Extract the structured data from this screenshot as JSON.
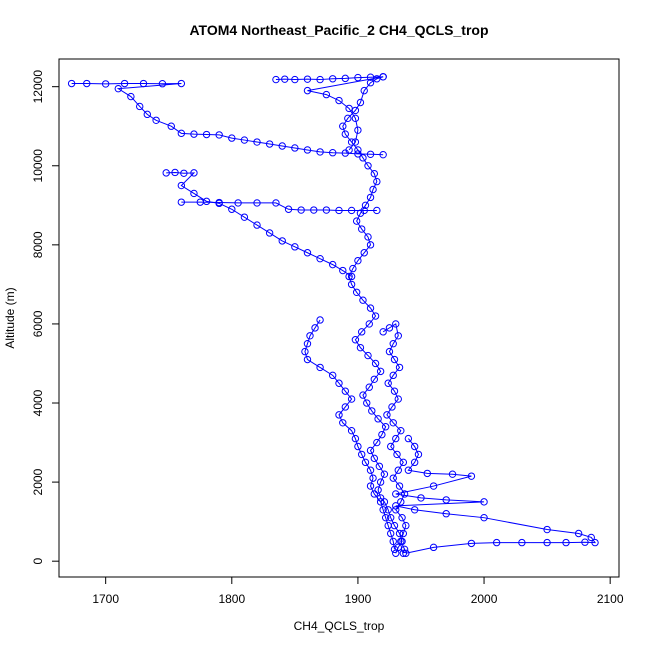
{
  "chart_data": {
    "type": "scatter",
    "title": "ATOM4 Northeast_Pacific_2 CH4_QCLS_trop",
    "xlabel": "CH4_QCLS_trop",
    "ylabel": "Altitude (m)",
    "xlim": [
      1663,
      2107
    ],
    "ylim": [
      -400,
      12700
    ],
    "xticks": [
      1700,
      1800,
      1900,
      2000,
      2100
    ],
    "yticks": [
      0,
      2000,
      4000,
      6000,
      8000,
      10000,
      12000
    ],
    "color": "#0000ff",
    "marker": "open-circle",
    "connected": true,
    "series": [
      {
        "points": [
          [
            1930,
            200
          ],
          [
            1932,
            350
          ],
          [
            1935,
            500
          ],
          [
            1933,
            700
          ],
          [
            1929,
            900
          ],
          [
            1926,
            1100
          ],
          [
            1924,
            1300
          ],
          [
            1921,
            1500
          ],
          [
            1918,
            1600
          ],
          [
            1916,
            1800
          ],
          [
            1918,
            2000
          ],
          [
            1921,
            2200
          ],
          [
            1917,
            2400
          ],
          [
            1913,
            2600
          ],
          [
            1910,
            2800
          ],
          [
            1915,
            3000
          ],
          [
            1919,
            3200
          ],
          [
            1922,
            3400
          ],
          [
            1916,
            3600
          ],
          [
            1911,
            3800
          ],
          [
            1907,
            4000
          ],
          [
            1904,
            4200
          ],
          [
            1909,
            4400
          ],
          [
            1913,
            4600
          ],
          [
            1918,
            4800
          ],
          [
            1914,
            5000
          ],
          [
            1908,
            5200
          ],
          [
            1902,
            5400
          ],
          [
            1898,
            5600
          ],
          [
            1903,
            5800
          ],
          [
            1909,
            6000
          ],
          [
            1914,
            6200
          ],
          [
            1910,
            6400
          ],
          [
            1904,
            6600
          ],
          [
            1899,
            6800
          ],
          [
            1895,
            7000
          ],
          [
            1893,
            7200
          ],
          [
            1896,
            7400
          ],
          [
            1900,
            7600
          ],
          [
            1905,
            7800
          ],
          [
            1910,
            8000
          ],
          [
            1908,
            8200
          ],
          [
            1903,
            8400
          ],
          [
            1899,
            8600
          ],
          [
            1902,
            8800
          ],
          [
            1906,
            9000
          ],
          [
            1910,
            9200
          ],
          [
            1912,
            9400
          ],
          [
            1915,
            9600
          ],
          [
            1913,
            9800
          ],
          [
            1908,
            10000
          ],
          [
            1904,
            10200
          ],
          [
            1900,
            10400
          ],
          [
            1895,
            10600
          ],
          [
            1890,
            10800
          ],
          [
            1888,
            11000
          ],
          [
            1892,
            11200
          ],
          [
            1898,
            11400
          ],
          [
            1902,
            11600
          ],
          [
            1905,
            11900
          ],
          [
            1910,
            12100
          ],
          [
            1915,
            12200
          ],
          [
            1920,
            12250
          ]
        ]
      },
      {
        "points": [
          [
            1673,
            12080
          ],
          [
            1685,
            12080
          ],
          [
            1700,
            12070
          ],
          [
            1715,
            12080
          ],
          [
            1730,
            12080
          ],
          [
            1745,
            12075
          ],
          [
            1760,
            12080
          ],
          [
            1710,
            11950
          ],
          [
            1720,
            11750
          ],
          [
            1727,
            11500
          ],
          [
            1733,
            11300
          ],
          [
            1740,
            11150
          ],
          [
            1752,
            11000
          ],
          [
            1760,
            10820
          ],
          [
            1770,
            10800
          ],
          [
            1780,
            10790
          ],
          [
            1790,
            10780
          ],
          [
            1800,
            10700
          ],
          [
            1810,
            10650
          ],
          [
            1820,
            10600
          ],
          [
            1830,
            10550
          ],
          [
            1840,
            10500
          ],
          [
            1850,
            10450
          ],
          [
            1860,
            10400
          ],
          [
            1870,
            10350
          ],
          [
            1880,
            10330
          ],
          [
            1890,
            10320
          ],
          [
            1900,
            10300
          ],
          [
            1910,
            10290
          ],
          [
            1920,
            10280
          ]
        ]
      },
      {
        "points": [
          [
            1748,
            9820
          ],
          [
            1755,
            9830
          ],
          [
            1762,
            9810
          ],
          [
            1770,
            9820
          ],
          [
            1760,
            9500
          ],
          [
            1770,
            9300
          ],
          [
            1780,
            9100
          ],
          [
            1790,
            9050
          ],
          [
            1800,
            8900
          ],
          [
            1810,
            8700
          ],
          [
            1820,
            8500
          ],
          [
            1830,
            8300
          ],
          [
            1840,
            8100
          ],
          [
            1850,
            7950
          ],
          [
            1860,
            7800
          ],
          [
            1870,
            7650
          ],
          [
            1880,
            7500
          ],
          [
            1888,
            7350
          ],
          [
            1895,
            7200
          ]
        ]
      },
      {
        "points": [
          [
            1760,
            9080
          ],
          [
            1775,
            9080
          ],
          [
            1790,
            9070
          ],
          [
            1805,
            9060
          ],
          [
            1820,
            9060
          ],
          [
            1835,
            9060
          ],
          [
            1845,
            8900
          ],
          [
            1855,
            8880
          ],
          [
            1865,
            8880
          ],
          [
            1875,
            8880
          ],
          [
            1885,
            8870
          ],
          [
            1895,
            8870
          ],
          [
            1905,
            8870
          ],
          [
            1915,
            8870
          ]
        ]
      },
      {
        "points": [
          [
            1835,
            12180
          ],
          [
            1842,
            12190
          ],
          [
            1850,
            12180
          ],
          [
            1860,
            12190
          ],
          [
            1870,
            12180
          ],
          [
            1880,
            12200
          ],
          [
            1890,
            12210
          ],
          [
            1900,
            12230
          ],
          [
            1910,
            12240
          ],
          [
            1920,
            12250
          ],
          [
            1860,
            11900
          ],
          [
            1875,
            11800
          ],
          [
            1885,
            11650
          ],
          [
            1893,
            11450
          ],
          [
            1898,
            11200
          ],
          [
            1900,
            10900
          ],
          [
            1898,
            10600
          ],
          [
            1893,
            10400
          ]
        ]
      },
      {
        "points": [
          [
            1938,
            200
          ],
          [
            1960,
            350
          ],
          [
            1990,
            450
          ],
          [
            2010,
            470
          ],
          [
            2030,
            470
          ],
          [
            2050,
            470
          ],
          [
            2065,
            470
          ],
          [
            2080,
            480
          ],
          [
            2088,
            470
          ],
          [
            2085,
            600
          ],
          [
            2075,
            700
          ],
          [
            2050,
            800
          ],
          [
            2000,
            1100
          ],
          [
            1970,
            1200
          ],
          [
            1945,
            1300
          ],
          [
            1930,
            1400
          ],
          [
            2000,
            1500
          ],
          [
            1970,
            1550
          ],
          [
            1950,
            1600
          ],
          [
            1930,
            1700
          ],
          [
            1960,
            1900
          ],
          [
            1990,
            2150
          ],
          [
            1975,
            2200
          ],
          [
            1955,
            2220
          ],
          [
            1940,
            2300
          ],
          [
            1945,
            2500
          ],
          [
            1948,
            2700
          ],
          [
            1945,
            2900
          ],
          [
            1940,
            3100
          ]
        ]
      },
      {
        "points": [
          [
            1920,
            5800
          ],
          [
            1925,
            5900
          ],
          [
            1930,
            6000
          ],
          [
            1932,
            5700
          ],
          [
            1928,
            5500
          ],
          [
            1925,
            5300
          ],
          [
            1929,
            5100
          ],
          [
            1933,
            4900
          ],
          [
            1928,
            4700
          ],
          [
            1924,
            4500
          ],
          [
            1929,
            4300
          ],
          [
            1932,
            4100
          ],
          [
            1927,
            3900
          ],
          [
            1923,
            3700
          ],
          [
            1928,
            3500
          ],
          [
            1934,
            3300
          ],
          [
            1930,
            3100
          ],
          [
            1926,
            2900
          ],
          [
            1931,
            2700
          ],
          [
            1936,
            2500
          ],
          [
            1932,
            2300
          ],
          [
            1928,
            2100
          ],
          [
            1933,
            1900
          ],
          [
            1937,
            1700
          ],
          [
            1934,
            1500
          ],
          [
            1930,
            1300
          ],
          [
            1935,
            1100
          ],
          [
            1938,
            900
          ],
          [
            1936,
            700
          ],
          [
            1934,
            500
          ],
          [
            1937,
            300
          ],
          [
            1936,
            200
          ]
        ]
      },
      {
        "points": [
          [
            1870,
            6100
          ],
          [
            1866,
            5900
          ],
          [
            1862,
            5700
          ],
          [
            1860,
            5500
          ],
          [
            1858,
            5300
          ],
          [
            1860,
            5100
          ],
          [
            1870,
            4900
          ],
          [
            1880,
            4700
          ],
          [
            1885,
            4500
          ],
          [
            1890,
            4300
          ],
          [
            1895,
            4100
          ],
          [
            1890,
            3900
          ],
          [
            1885,
            3700
          ],
          [
            1888,
            3500
          ],
          [
            1895,
            3300
          ],
          [
            1898,
            3100
          ],
          [
            1900,
            2900
          ],
          [
            1903,
            2700
          ],
          [
            1906,
            2500
          ],
          [
            1910,
            2300
          ],
          [
            1912,
            2100
          ],
          [
            1910,
            1900
          ],
          [
            1913,
            1700
          ],
          [
            1918,
            1500
          ],
          [
            1920,
            1300
          ],
          [
            1922,
            1100
          ],
          [
            1924,
            900
          ],
          [
            1926,
            700
          ],
          [
            1928,
            500
          ],
          [
            1929,
            300
          ]
        ]
      }
    ]
  }
}
